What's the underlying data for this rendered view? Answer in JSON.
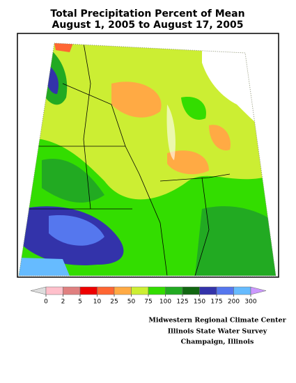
{
  "title": [
    "Total Precipitation Percent of Mean",
    "August 1, 2005 to August 17, 2005"
  ],
  "legend": {
    "ticks": [
      0,
      2,
      5,
      10,
      25,
      50,
      75,
      100,
      125,
      150,
      175,
      200,
      300
    ],
    "colors": [
      "#ffc0cb",
      "#e08080",
      "#ee0000",
      "#ff6633",
      "#ffaa44",
      "#ccee33",
      "#33dd00",
      "#22aa22",
      "#116611",
      "#3333aa",
      "#5577ee",
      "#66bbff"
    ],
    "under_color": "#dddddd",
    "over_color": "#cc99ff"
  },
  "credits": [
    "Midwestern Regional Climate Center",
    "Illinois State Water Survey",
    "Champaign, Illinois"
  ]
}
